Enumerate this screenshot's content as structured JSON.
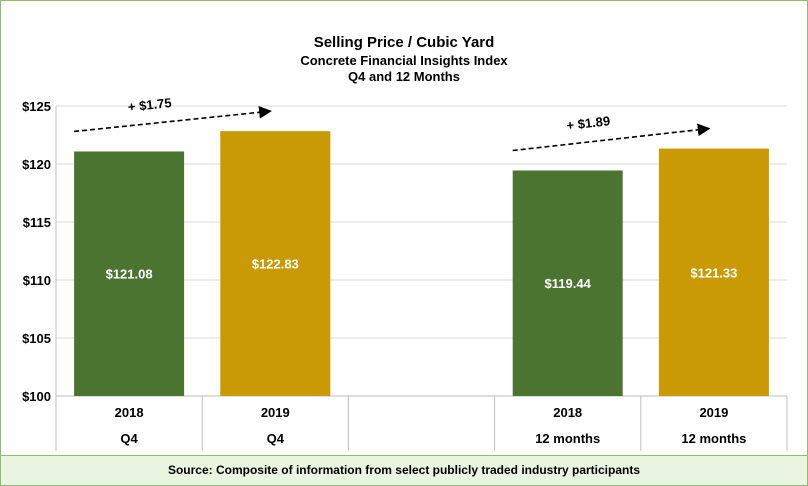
{
  "title": "Selling Price / Cubic Yard",
  "subtitle": "Concrete Financial Insights Index",
  "subtitle2": "Q4 and  12 Months",
  "source": "Source: Composite of information from select publicly traded industry participants",
  "colors": {
    "green": "#4b7431",
    "gold": "#c99a04",
    "axis": "#bfbfbf",
    "grid": "#d9d9d9",
    "frame": "#8fbf6a",
    "source_bg": "#e9f5e1"
  },
  "chart_data": {
    "type": "bar",
    "ylim": [
      100,
      125
    ],
    "yticks": [
      100,
      105,
      110,
      115,
      120,
      125
    ],
    "ytick_labels": [
      "$100",
      "$105",
      "$110",
      "$115",
      "$120",
      "$125"
    ],
    "grid": true,
    "categories": [
      {
        "year": "2018",
        "period": "Q4",
        "value": 121.08,
        "label": "$121.08",
        "color": "green"
      },
      {
        "year": "2019",
        "period": "Q4",
        "value": 122.83,
        "label": "$122.83",
        "color": "gold"
      },
      {
        "year": "",
        "period": "",
        "value": null,
        "label": "",
        "color": ""
      },
      {
        "year": "2018",
        "period": "12 months",
        "value": 119.44,
        "label": "$119.44",
        "color": "green"
      },
      {
        "year": "2019",
        "period": "12 months",
        "value": 121.33,
        "label": "$121.33",
        "color": "gold"
      }
    ],
    "annotations": [
      {
        "text": "+ $1.75",
        "from": 0,
        "to": 1
      },
      {
        "text": "+ $1.89",
        "from": 3,
        "to": 4
      }
    ]
  }
}
